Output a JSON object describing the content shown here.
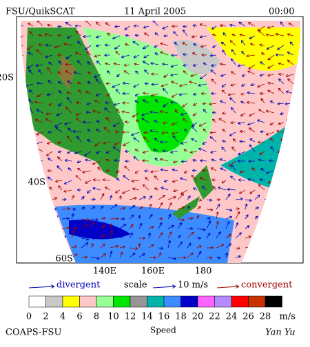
{
  "header": {
    "title": "FSU/QuikSCAT",
    "date": "11 April 2005",
    "time": "00:00"
  },
  "map": {
    "lat_labels": [
      "20S",
      "40S",
      "60S"
    ],
    "lon_labels": [
      "140E",
      "160E",
      "180"
    ]
  },
  "legend": {
    "divergent": "divergent",
    "scale": "scale",
    "scale_value": "10 m/s",
    "convergent": "convergent"
  },
  "colorbar": {
    "colors": [
      "#ffffff",
      "#c8c8c8",
      "#ffff00",
      "#ffc8c8",
      "#96ff96",
      "#00e600",
      "#969696",
      "#00b4aa",
      "#3c8cff",
      "#0000c8",
      "#ff64ff",
      "#b48cff",
      "#ff0000",
      "#c83200",
      "#000000"
    ],
    "labels": [
      "0",
      "2",
      "4",
      "6",
      "8",
      "10",
      "12",
      "14",
      "16",
      "18",
      "20",
      "22",
      "24",
      "26",
      "28"
    ],
    "unit": "m/s",
    "title": "Speed"
  },
  "footer": {
    "left": "COAPS-FSU",
    "right": "Yan Yu"
  }
}
